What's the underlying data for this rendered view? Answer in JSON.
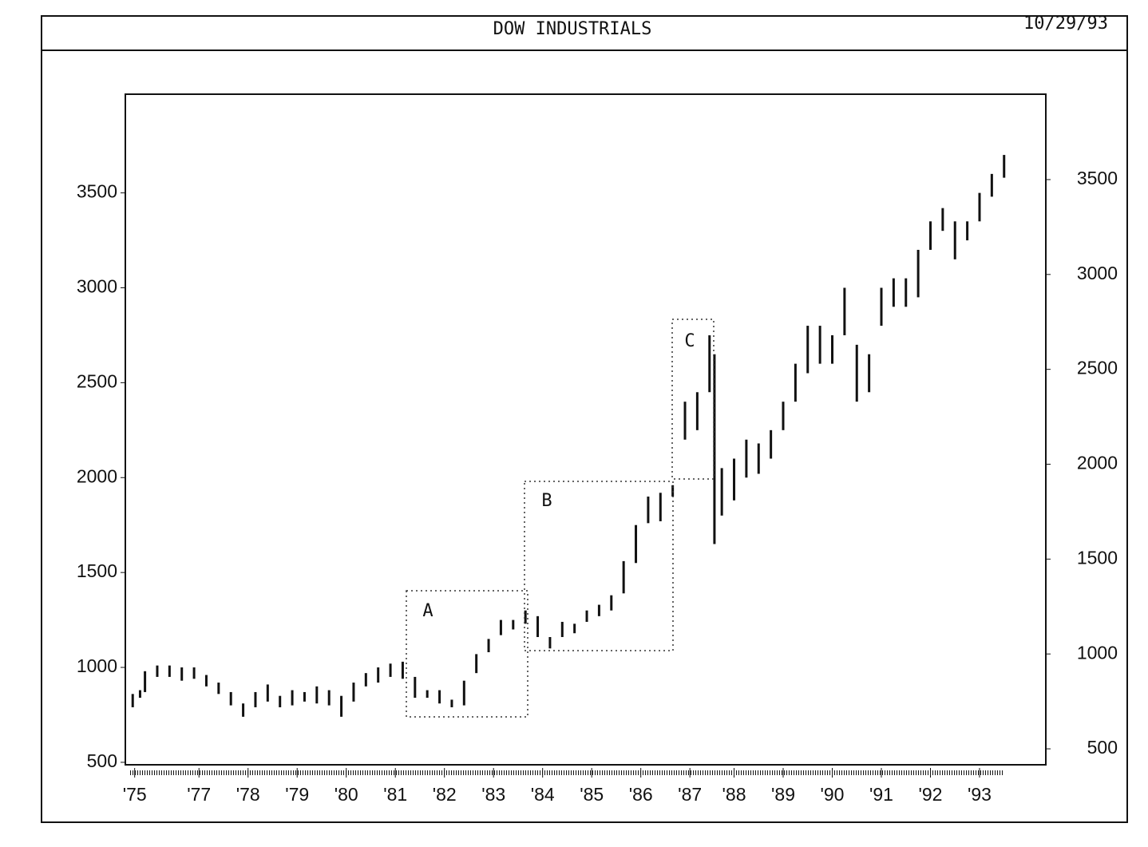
{
  "chart_data": {
    "type": "range-bar",
    "title": "DOW INDUSTRIALS",
    "date": "10/29/93",
    "color": "#111111",
    "xlim": [
      1975.8,
      1994.55
    ],
    "xticks": [
      {
        "value": 1975.99,
        "label": "'75"
      },
      {
        "value": 1977.3,
        "label": "'77"
      },
      {
        "value": 1978.3,
        "label": "'78"
      },
      {
        "value": 1979.3,
        "label": "'79"
      },
      {
        "value": 1980.3,
        "label": "'80"
      },
      {
        "value": 1981.3,
        "label": "'81"
      },
      {
        "value": 1982.3,
        "label": "'82"
      },
      {
        "value": 1983.3,
        "label": "'83"
      },
      {
        "value": 1984.3,
        "label": "'84"
      },
      {
        "value": 1985.3,
        "label": "'85"
      },
      {
        "value": 1986.3,
        "label": "'86"
      },
      {
        "value": 1987.3,
        "label": "'87"
      },
      {
        "value": 1988.2,
        "label": "'88"
      },
      {
        "value": 1989.2,
        "label": "'89"
      },
      {
        "value": 1990.2,
        "label": "'90"
      },
      {
        "value": 1991.2,
        "label": "'91"
      },
      {
        "value": 1992.2,
        "label": "'92"
      },
      {
        "value": 1993.2,
        "label": "'93"
      }
    ],
    "ylim": [
      487,
      4020
    ],
    "yticks": [
      500,
      1000,
      1500,
      2000,
      2500,
      3000,
      3500
    ],
    "y2lim": [
      416,
      3950
    ],
    "y2ticks": [
      500,
      1000,
      1500,
      2000,
      2500,
      3000,
      3500
    ],
    "x": [
      1975.95,
      1976.1,
      1976.2,
      1976.45,
      1976.7,
      1976.95,
      1977.2,
      1977.45,
      1977.7,
      1977.95,
      1978.2,
      1978.45,
      1978.7,
      1978.95,
      1979.2,
      1979.45,
      1979.7,
      1979.95,
      1980.2,
      1980.45,
      1980.7,
      1980.95,
      1981.2,
      1981.45,
      1981.7,
      1981.95,
      1982.2,
      1982.45,
      1982.7,
      1982.95,
      1983.2,
      1983.45,
      1983.7,
      1983.95,
      1984.2,
      1984.45,
      1984.7,
      1984.95,
      1985.2,
      1985.45,
      1985.7,
      1985.95,
      1986.2,
      1986.45,
      1986.7,
      1986.95,
      1987.2,
      1987.45,
      1987.7,
      1987.8,
      1987.95,
      1988.2,
      1988.45,
      1988.7,
      1988.95,
      1989.2,
      1989.45,
      1989.7,
      1989.95,
      1990.2,
      1990.45,
      1990.7,
      1990.95,
      1991.2,
      1991.45,
      1991.7,
      1991.95,
      1992.2,
      1992.45,
      1992.7,
      1992.95,
      1993.2,
      1993.45,
      1993.7
    ],
    "low": [
      790,
      840,
      870,
      950,
      950,
      930,
      940,
      900,
      860,
      800,
      740,
      790,
      820,
      790,
      800,
      820,
      810,
      800,
      740,
      820,
      900,
      920,
      950,
      940,
      840,
      840,
      810,
      790,
      800,
      970,
      1080,
      1170,
      1200,
      1230,
      1160,
      1100,
      1160,
      1180,
      1240,
      1270,
      1300,
      1390,
      1550,
      1760,
      1770,
      1900,
      2200,
      2250,
      2450,
      1650,
      1800,
      1880,
      2000,
      2020,
      2100,
      2250,
      2400,
      2550,
      2600,
      2600,
      2750,
      2400,
      2450,
      2800,
      2900,
      2900,
      2950,
      3200,
      3300,
      3150,
      3250,
      3350,
      3480,
      3580
    ],
    "high": [
      860,
      880,
      980,
      1010,
      1010,
      1000,
      1000,
      960,
      920,
      870,
      810,
      870,
      910,
      850,
      880,
      870,
      900,
      880,
      850,
      920,
      970,
      1000,
      1020,
      1030,
      950,
      880,
      880,
      830,
      930,
      1070,
      1150,
      1250,
      1250,
      1300,
      1270,
      1160,
      1240,
      1230,
      1300,
      1330,
      1380,
      1560,
      1750,
      1900,
      1920,
      1960,
      2400,
      2450,
      2750,
      2650,
      2050,
      2100,
      2200,
      2180,
      2250,
      2400,
      2600,
      2800,
      2800,
      2750,
      3000,
      2700,
      2650,
      3000,
      3050,
      3050,
      3200,
      3350,
      3420,
      3350,
      3350,
      3500,
      3600,
      3700
    ],
    "annotations": [
      "A",
      "B",
      "C"
    ]
  }
}
